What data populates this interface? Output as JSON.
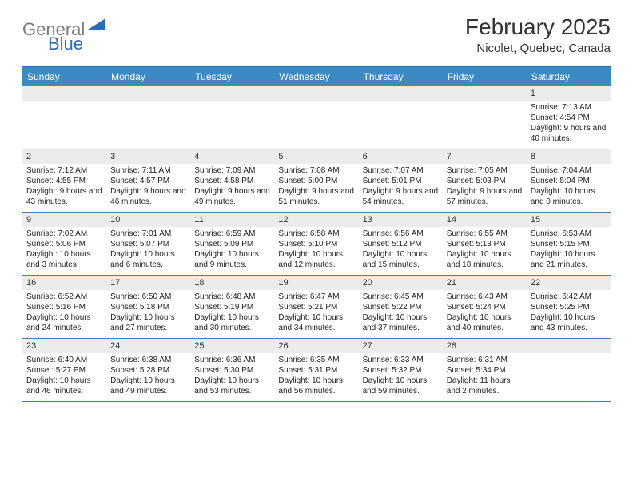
{
  "logo": {
    "part1": "General",
    "part2": "Blue"
  },
  "title": "February 2025",
  "subtitle": "Nicolet, Quebec, Canada",
  "colors": {
    "header_bg": "#3b8ac4",
    "border": "#4a7aa8",
    "daynum_bg": "#ececec",
    "logo_gray": "#7a7a7a",
    "logo_blue": "#2a6ebb"
  },
  "day_names": [
    "Sunday",
    "Monday",
    "Tuesday",
    "Wednesday",
    "Thursday",
    "Friday",
    "Saturday"
  ],
  "weeks": [
    [
      {
        "n": "",
        "empty": true
      },
      {
        "n": "",
        "empty": true
      },
      {
        "n": "",
        "empty": true
      },
      {
        "n": "",
        "empty": true
      },
      {
        "n": "",
        "empty": true
      },
      {
        "n": "",
        "empty": true
      },
      {
        "n": "1",
        "sr": "7:13 AM",
        "ss": "4:54 PM",
        "dl": "9 hours and 40 minutes."
      }
    ],
    [
      {
        "n": "2",
        "sr": "7:12 AM",
        "ss": "4:55 PM",
        "dl": "9 hours and 43 minutes."
      },
      {
        "n": "3",
        "sr": "7:11 AM",
        "ss": "4:57 PM",
        "dl": "9 hours and 46 minutes."
      },
      {
        "n": "4",
        "sr": "7:09 AM",
        "ss": "4:58 PM",
        "dl": "9 hours and 49 minutes."
      },
      {
        "n": "5",
        "sr": "7:08 AM",
        "ss": "5:00 PM",
        "dl": "9 hours and 51 minutes."
      },
      {
        "n": "6",
        "sr": "7:07 AM",
        "ss": "5:01 PM",
        "dl": "9 hours and 54 minutes."
      },
      {
        "n": "7",
        "sr": "7:05 AM",
        "ss": "5:03 PM",
        "dl": "9 hours and 57 minutes."
      },
      {
        "n": "8",
        "sr": "7:04 AM",
        "ss": "5:04 PM",
        "dl": "10 hours and 0 minutes."
      }
    ],
    [
      {
        "n": "9",
        "sr": "7:02 AM",
        "ss": "5:06 PM",
        "dl": "10 hours and 3 minutes."
      },
      {
        "n": "10",
        "sr": "7:01 AM",
        "ss": "5:07 PM",
        "dl": "10 hours and 6 minutes."
      },
      {
        "n": "11",
        "sr": "6:59 AM",
        "ss": "5:09 PM",
        "dl": "10 hours and 9 minutes."
      },
      {
        "n": "12",
        "sr": "6:58 AM",
        "ss": "5:10 PM",
        "dl": "10 hours and 12 minutes."
      },
      {
        "n": "13",
        "sr": "6:56 AM",
        "ss": "5:12 PM",
        "dl": "10 hours and 15 minutes."
      },
      {
        "n": "14",
        "sr": "6:55 AM",
        "ss": "5:13 PM",
        "dl": "10 hours and 18 minutes."
      },
      {
        "n": "15",
        "sr": "6:53 AM",
        "ss": "5:15 PM",
        "dl": "10 hours and 21 minutes."
      }
    ],
    [
      {
        "n": "16",
        "sr": "6:52 AM",
        "ss": "5:16 PM",
        "dl": "10 hours and 24 minutes."
      },
      {
        "n": "17",
        "sr": "6:50 AM",
        "ss": "5:18 PM",
        "dl": "10 hours and 27 minutes."
      },
      {
        "n": "18",
        "sr": "6:48 AM",
        "ss": "5:19 PM",
        "dl": "10 hours and 30 minutes."
      },
      {
        "n": "19",
        "sr": "6:47 AM",
        "ss": "5:21 PM",
        "dl": "10 hours and 34 minutes."
      },
      {
        "n": "20",
        "sr": "6:45 AM",
        "ss": "5:22 PM",
        "dl": "10 hours and 37 minutes."
      },
      {
        "n": "21",
        "sr": "6:43 AM",
        "ss": "5:24 PM",
        "dl": "10 hours and 40 minutes."
      },
      {
        "n": "22",
        "sr": "6:42 AM",
        "ss": "5:25 PM",
        "dl": "10 hours and 43 minutes."
      }
    ],
    [
      {
        "n": "23",
        "sr": "6:40 AM",
        "ss": "5:27 PM",
        "dl": "10 hours and 46 minutes."
      },
      {
        "n": "24",
        "sr": "6:38 AM",
        "ss": "5:28 PM",
        "dl": "10 hours and 49 minutes."
      },
      {
        "n": "25",
        "sr": "6:36 AM",
        "ss": "5:30 PM",
        "dl": "10 hours and 53 minutes."
      },
      {
        "n": "26",
        "sr": "6:35 AM",
        "ss": "5:31 PM",
        "dl": "10 hours and 56 minutes."
      },
      {
        "n": "27",
        "sr": "6:33 AM",
        "ss": "5:32 PM",
        "dl": "10 hours and 59 minutes."
      },
      {
        "n": "28",
        "sr": "6:31 AM",
        "ss": "5:34 PM",
        "dl": "11 hours and 2 minutes."
      },
      {
        "n": "",
        "empty": true
      }
    ]
  ],
  "labels": {
    "sunrise": "Sunrise:",
    "sunset": "Sunset:",
    "daylight": "Daylight:"
  }
}
